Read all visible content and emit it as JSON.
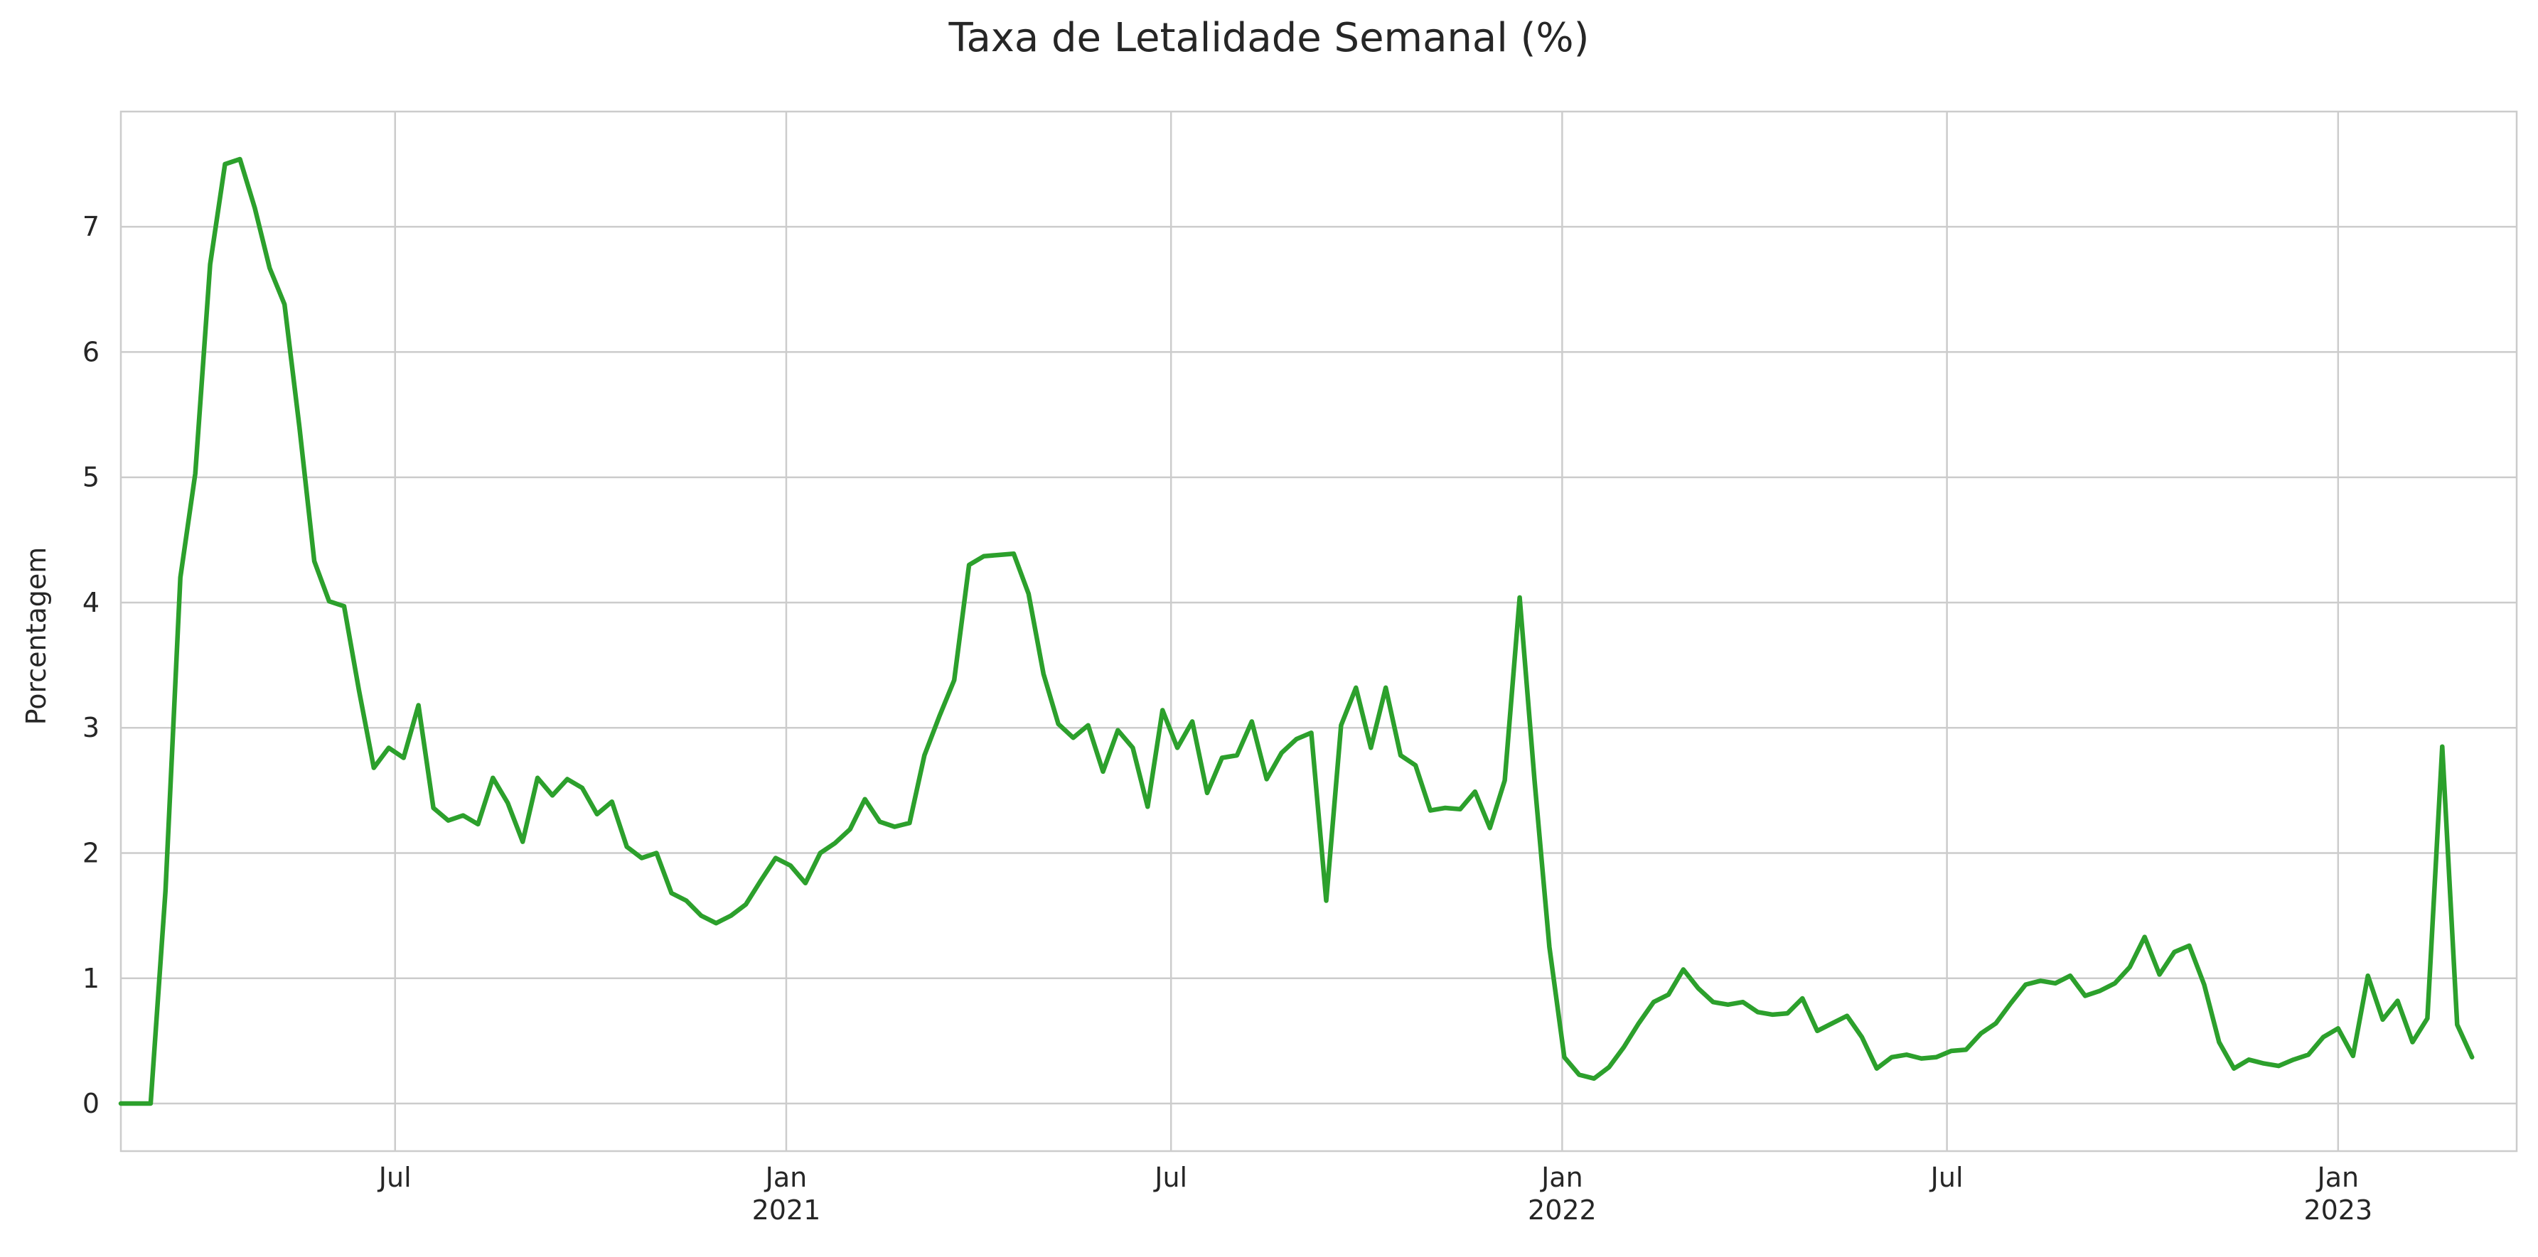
{
  "chart_data": {
    "type": "line",
    "title": "Taxa de Letalidade Semanal (%)",
    "xlabel": "",
    "ylabel": "Porcentagem",
    "ylim": [
      -0.38,
      7.92
    ],
    "yticks": [
      0,
      1,
      2,
      3,
      4,
      5,
      6,
      7
    ],
    "grid": true,
    "legend": "none",
    "colors": {
      "series": "#2ca02c",
      "grid": "#cccccc",
      "text": "#262626"
    },
    "x_ticks": [
      {
        "month": "Jul",
        "year": ""
      },
      {
        "month": "Jan",
        "year": "2021"
      },
      {
        "month": "Jul",
        "year": ""
      },
      {
        "month": "Jan",
        "year": "2022"
      },
      {
        "month": "Jul",
        "year": ""
      },
      {
        "month": "Jan",
        "year": "2023"
      }
    ],
    "x_tick_dates": [
      "2020-07-01",
      "2021-01-01",
      "2021-07-01",
      "2022-01-01",
      "2022-07-01",
      "2023-01-01"
    ],
    "x_range": [
      "2020-02-23",
      "2023-03-26"
    ],
    "series": [
      {
        "start": "2020-02-23",
        "frequency": "weekly",
        "values": [
          0.0,
          0.0,
          0.0,
          1.7,
          4.2,
          5.03,
          6.7,
          7.5,
          7.54,
          7.15,
          6.67,
          6.38,
          5.4,
          4.33,
          4.01,
          3.97,
          3.3,
          2.68,
          2.84,
          2.76,
          3.18,
          2.36,
          2.26,
          2.3,
          2.23,
          2.6,
          2.4,
          2.09,
          2.6,
          2.46,
          2.59,
          2.52,
          2.31,
          2.41,
          2.05,
          1.96,
          2.0,
          1.68,
          1.62,
          1.5,
          1.44,
          1.5,
          1.59,
          1.78,
          1.96,
          1.9,
          1.76,
          2.0,
          2.08,
          2.19,
          2.43,
          2.25,
          2.21,
          2.24,
          2.78,
          3.09,
          3.38,
          4.3,
          4.37,
          4.38,
          4.39,
          4.07,
          3.43,
          3.03,
          2.92,
          3.02,
          2.65,
          2.98,
          2.84,
          2.37,
          3.14,
          2.84,
          3.05,
          2.48,
          2.76,
          2.78,
          3.05,
          2.59,
          2.8,
          2.91,
          2.96,
          1.62,
          3.02,
          3.32,
          2.84,
          3.32,
          2.78,
          2.7,
          2.34,
          2.36,
          2.35,
          2.49,
          2.2,
          2.58,
          4.04,
          2.58,
          1.25,
          0.37,
          0.23,
          0.2,
          0.29,
          0.45,
          0.64,
          0.81,
          0.87,
          1.07,
          0.92,
          0.81,
          0.79,
          0.81,
          0.73,
          0.71,
          0.72,
          0.84,
          0.58,
          0.64,
          0.7,
          0.53,
          0.28,
          0.37,
          0.39,
          0.36,
          0.37,
          0.42,
          0.43,
          0.56,
          0.64,
          0.8,
          0.95,
          0.98,
          0.96,
          1.02,
          0.86,
          0.9,
          0.96,
          1.09,
          1.33,
          1.03,
          1.21,
          1.26,
          0.95,
          0.49,
          0.28,
          0.35,
          0.32,
          0.3,
          0.35,
          0.39,
          0.53,
          0.6,
          0.38,
          1.02,
          0.67,
          0.82,
          0.49,
          0.68,
          2.85,
          0.63,
          0.37
        ]
      }
    ]
  }
}
